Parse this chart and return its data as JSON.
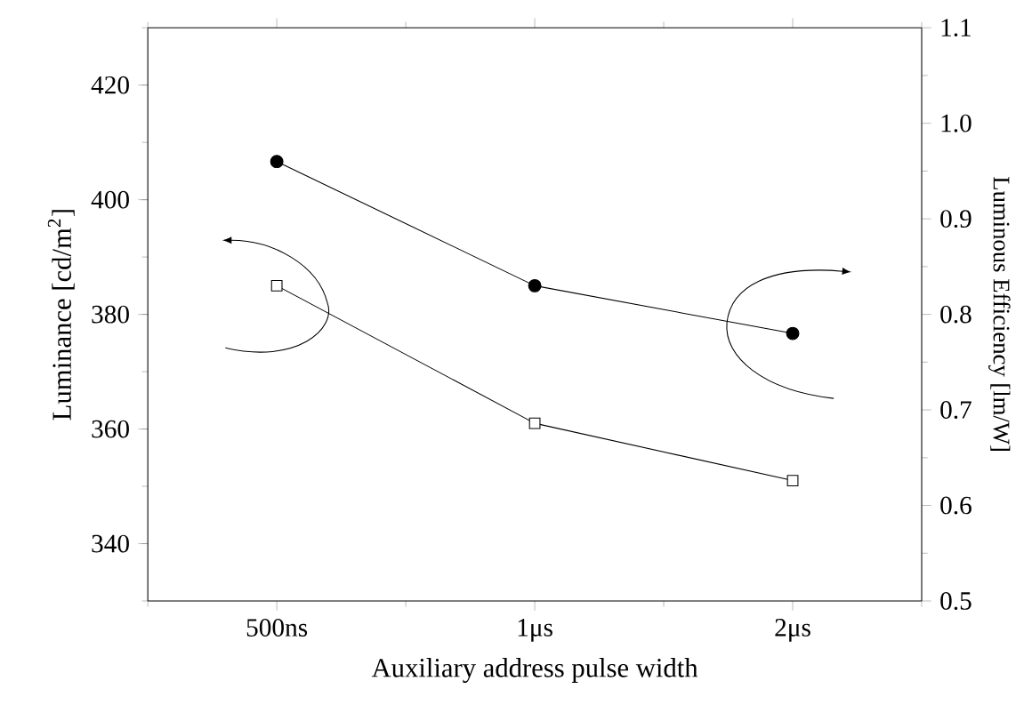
{
  "chart_data": {
    "type": "line",
    "xlabel": "Auxiliary address pulse width",
    "ylabel": "Luminance [cd/m$^{2}$]",
    "y2label": "Luminous Efficiency [lm/W]",
    "categories": [
      "500ns",
      "1μs",
      "2μs"
    ],
    "ylim": [
      330,
      430
    ],
    "yticks": [
      340,
      360,
      380,
      400,
      420
    ],
    "y2lim": [
      0.5,
      1.1
    ],
    "y2ticks": [
      0.5,
      0.6,
      0.7,
      0.8,
      0.9,
      {
        "value": 1.0,
        "label": "1.0"
      },
      1.1
    ],
    "line_style": "solid",
    "grid": false,
    "series": [
      {
        "color": "#000000",
        "marker": "square",
        "values": [
          385,
          361,
          351
        ]
      },
      {
        "color": "#000000",
        "marker": "circle",
        "axis": "y2",
        "values": [
          0.96,
          0.83,
          0.78
        ]
      }
    ]
  }
}
